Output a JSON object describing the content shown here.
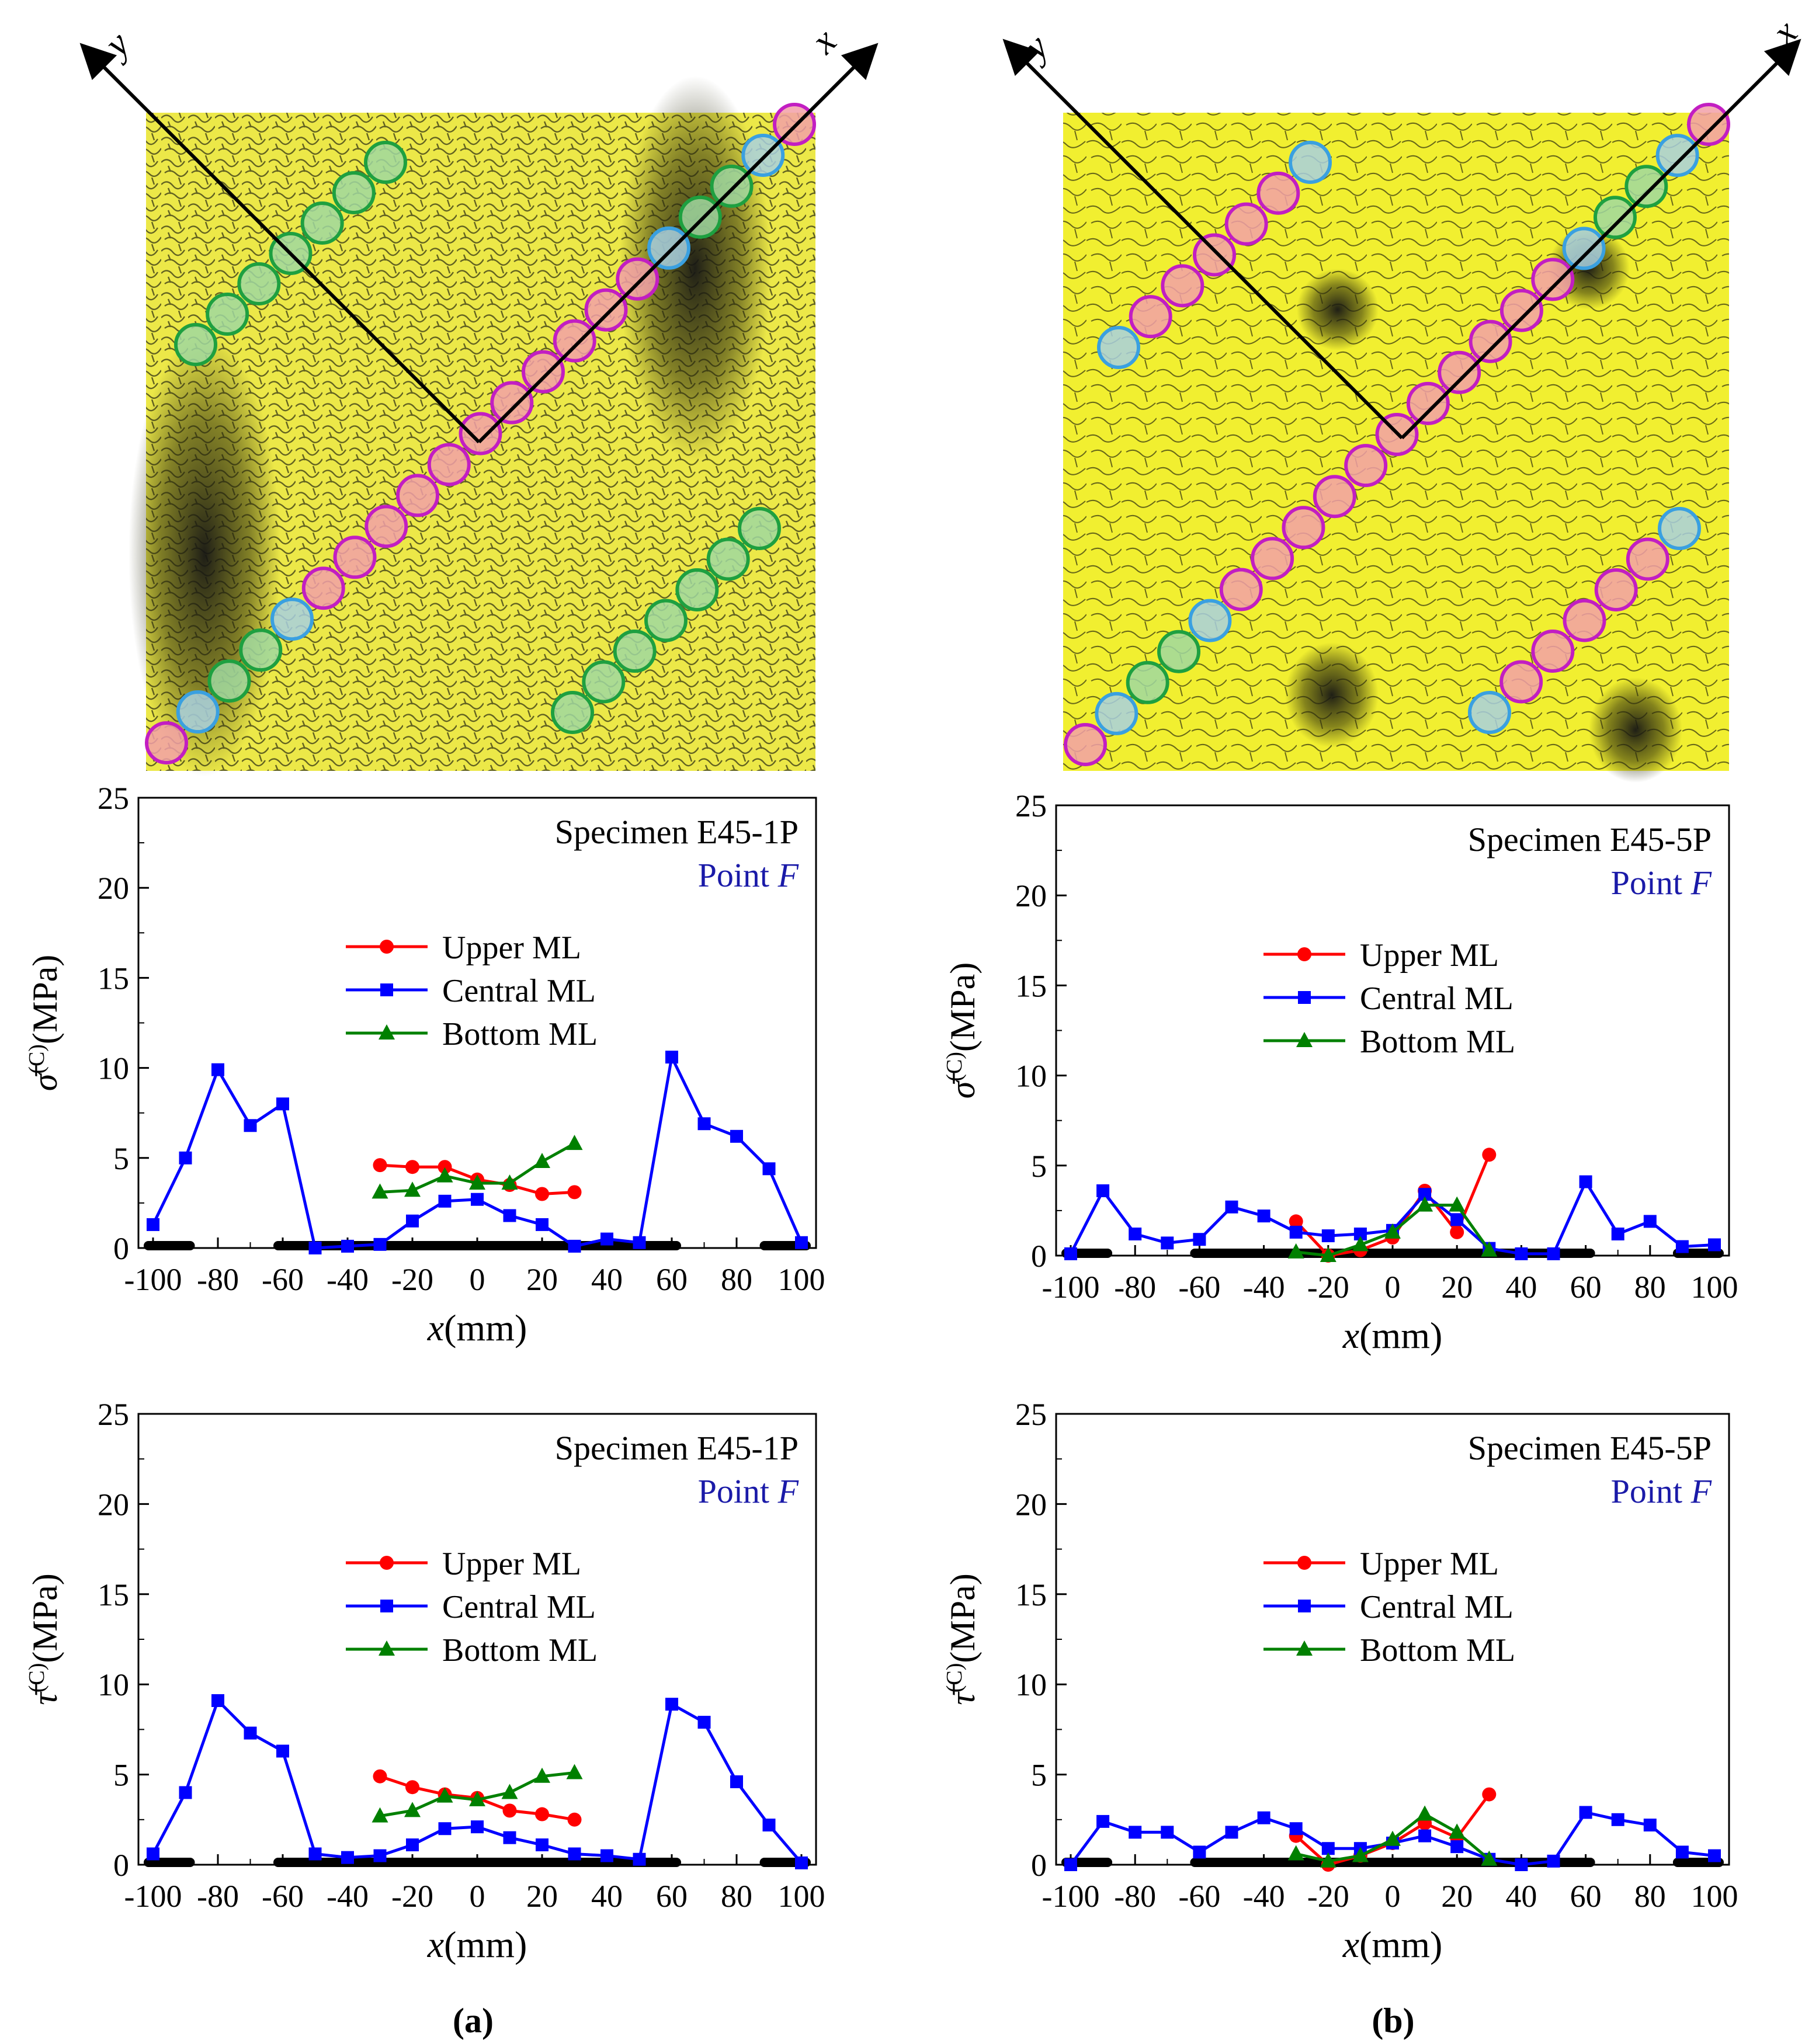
{
  "figure": {
    "panel_labels": [
      "(a)",
      "(b)"
    ],
    "axis_letters": {
      "x": "x",
      "y": "y"
    }
  },
  "chart_data": [
    {
      "id": "a-sigma",
      "type": "line",
      "specimen": "Specimen E45-1P",
      "point_prefix": "Point ",
      "point_letter": "F",
      "ylabel_symbol": "σ̄",
      "ylabel_super": "(C)",
      "ylabel_unit": "(MPa)",
      "xlabel_var": "x",
      "xlabel_unit": "(mm)",
      "xlim": [
        -100,
        100
      ],
      "ylim": [
        0,
        25
      ],
      "xticks": [
        -100,
        -80,
        -60,
        -40,
        -20,
        0,
        20,
        40,
        60,
        80,
        100
      ],
      "yticks": [
        0,
        5,
        10,
        15,
        20,
        25
      ],
      "crack_bands": [
        [
          -100,
          -90
        ],
        [
          -60,
          60
        ],
        [
          90,
          100
        ]
      ],
      "series": [
        {
          "name": "Upper ML",
          "color": "#ff0000",
          "marker": "circle",
          "x": [
            -30,
            -20,
            -10,
            0,
            10,
            20,
            30
          ],
          "y": [
            4.6,
            4.5,
            4.5,
            3.8,
            3.5,
            3.0,
            3.1
          ]
        },
        {
          "name": "Central ML",
          "color": "#0000ff",
          "marker": "square",
          "x": [
            -100,
            -90,
            -80,
            -70,
            -60,
            -50,
            -40,
            -30,
            -20,
            -10,
            0,
            10,
            20,
            30,
            40,
            50,
            60,
            70,
            80,
            90,
            100
          ],
          "y": [
            1.3,
            5.0,
            9.9,
            6.8,
            8.0,
            0.0,
            0.1,
            0.2,
            1.5,
            2.6,
            2.7,
            1.8,
            1.3,
            0.1,
            0.5,
            0.3,
            10.6,
            6.9,
            6.2,
            4.4,
            0.3
          ]
        },
        {
          "name": "Bottom ML",
          "color": "#008000",
          "marker": "triangle",
          "x": [
            -30,
            -20,
            -10,
            0,
            10,
            20,
            30
          ],
          "y": [
            3.1,
            3.2,
            4.0,
            3.6,
            3.6,
            4.8,
            5.8
          ]
        }
      ]
    },
    {
      "id": "b-sigma",
      "type": "line",
      "specimen": "Specimen E45-5P",
      "point_prefix": "Point ",
      "point_letter": "F",
      "ylabel_symbol": "σ̄",
      "ylabel_super": "(C)",
      "ylabel_unit": "(MPa)",
      "xlabel_var": "x",
      "xlabel_unit": "(mm)",
      "xlim": [
        -100,
        100
      ],
      "ylim": [
        0,
        25
      ],
      "xticks": [
        -100,
        -80,
        -60,
        -40,
        -20,
        0,
        20,
        40,
        60,
        80,
        100
      ],
      "yticks": [
        0,
        5,
        10,
        15,
        20,
        25
      ],
      "crack_bands": [
        [
          -100,
          -90
        ],
        [
          -60,
          60
        ],
        [
          90,
          100
        ]
      ],
      "series": [
        {
          "name": "Upper ML",
          "color": "#ff0000",
          "marker": "circle",
          "x": [
            -30,
            -20,
            -10,
            0,
            10,
            20,
            30
          ],
          "y": [
            1.9,
            0.0,
            0.3,
            1.0,
            3.6,
            1.3,
            5.6
          ]
        },
        {
          "name": "Central ML",
          "color": "#0000ff",
          "marker": "square",
          "x": [
            -100,
            -90,
            -80,
            -70,
            -60,
            -50,
            -40,
            -30,
            -20,
            -10,
            0,
            10,
            20,
            30,
            40,
            50,
            60,
            70,
            80,
            90,
            100
          ],
          "y": [
            0.1,
            3.6,
            1.2,
            0.7,
            0.9,
            2.7,
            2.2,
            1.3,
            1.1,
            1.2,
            1.4,
            3.4,
            2.0,
            0.4,
            0.1,
            0.1,
            4.1,
            1.2,
            1.9,
            0.5,
            0.6
          ]
        },
        {
          "name": "Bottom ML",
          "color": "#008000",
          "marker": "triangle",
          "x": [
            -30,
            -20,
            -10,
            0,
            10,
            20,
            30
          ],
          "y": [
            0.2,
            0.0,
            0.6,
            1.3,
            2.8,
            2.8,
            0.3
          ]
        }
      ]
    },
    {
      "id": "a-tau",
      "type": "line",
      "specimen": "Specimen E45-1P",
      "point_prefix": "Point ",
      "point_letter": "F",
      "ylabel_symbol": "τ̄",
      "ylabel_super": "(C)",
      "ylabel_unit": "(MPa)",
      "xlabel_var": "x",
      "xlabel_unit": "(mm)",
      "xlim": [
        -100,
        100
      ],
      "ylim": [
        0,
        25
      ],
      "xticks": [
        -100,
        -80,
        -60,
        -40,
        -20,
        0,
        20,
        40,
        60,
        80,
        100
      ],
      "yticks": [
        0,
        5,
        10,
        15,
        20,
        25
      ],
      "crack_bands": [
        [
          -100,
          -90
        ],
        [
          -60,
          60
        ],
        [
          90,
          100
        ]
      ],
      "series": [
        {
          "name": "Upper ML",
          "color": "#ff0000",
          "marker": "circle",
          "x": [
            -30,
            -20,
            -10,
            0,
            10,
            20,
            30
          ],
          "y": [
            4.9,
            4.3,
            3.9,
            3.7,
            3.0,
            2.8,
            2.5
          ]
        },
        {
          "name": "Central ML",
          "color": "#0000ff",
          "marker": "square",
          "x": [
            -100,
            -90,
            -80,
            -70,
            -60,
            -50,
            -40,
            -30,
            -20,
            -10,
            0,
            10,
            20,
            30,
            40,
            50,
            60,
            70,
            80,
            90,
            100
          ],
          "y": [
            0.6,
            4.0,
            9.1,
            7.3,
            6.3,
            0.6,
            0.4,
            0.5,
            1.1,
            2.0,
            2.1,
            1.5,
            1.1,
            0.6,
            0.5,
            0.3,
            8.9,
            7.9,
            4.6,
            2.2,
            0.1
          ]
        },
        {
          "name": "Bottom ML",
          "color": "#008000",
          "marker": "triangle",
          "x": [
            -30,
            -20,
            -10,
            0,
            10,
            20,
            30
          ],
          "y": [
            2.7,
            3.0,
            3.8,
            3.6,
            4.0,
            4.9,
            5.1
          ]
        }
      ]
    },
    {
      "id": "b-tau",
      "type": "line",
      "specimen": "Specimen E45-5P",
      "point_prefix": "Point ",
      "point_letter": "F",
      "ylabel_symbol": "τ̄",
      "ylabel_super": "(C)",
      "ylabel_unit": "(MPa)",
      "xlabel_var": "x",
      "xlabel_unit": "(mm)",
      "xlim": [
        -100,
        100
      ],
      "ylim": [
        0,
        25
      ],
      "xticks": [
        -100,
        -80,
        -60,
        -40,
        -20,
        0,
        20,
        40,
        60,
        80,
        100
      ],
      "yticks": [
        0,
        5,
        10,
        15,
        20,
        25
      ],
      "crack_bands": [
        [
          -100,
          -90
        ],
        [
          -60,
          60
        ],
        [
          90,
          100
        ]
      ],
      "series": [
        {
          "name": "Upper ML",
          "color": "#ff0000",
          "marker": "circle",
          "x": [
            -30,
            -20,
            -10,
            0,
            10,
            20,
            30
          ],
          "y": [
            1.6,
            0.0,
            0.5,
            1.2,
            2.3,
            1.5,
            3.9
          ]
        },
        {
          "name": "Central ML",
          "color": "#0000ff",
          "marker": "square",
          "x": [
            -100,
            -90,
            -80,
            -70,
            -60,
            -50,
            -40,
            -30,
            -20,
            -10,
            0,
            10,
            20,
            30,
            40,
            50,
            60,
            70,
            80,
            90,
            100
          ],
          "y": [
            0.0,
            2.4,
            1.8,
            1.8,
            0.7,
            1.8,
            2.6,
            2.0,
            0.9,
            0.9,
            1.2,
            1.6,
            1.0,
            0.3,
            0.0,
            0.2,
            2.9,
            2.5,
            2.2,
            0.7,
            0.5
          ]
        },
        {
          "name": "Bottom ML",
          "color": "#008000",
          "marker": "triangle",
          "x": [
            -30,
            -20,
            -10,
            0,
            10,
            20,
            30
          ],
          "y": [
            0.6,
            0.2,
            0.5,
            1.4,
            2.8,
            1.8,
            0.3
          ]
        }
      ]
    }
  ]
}
